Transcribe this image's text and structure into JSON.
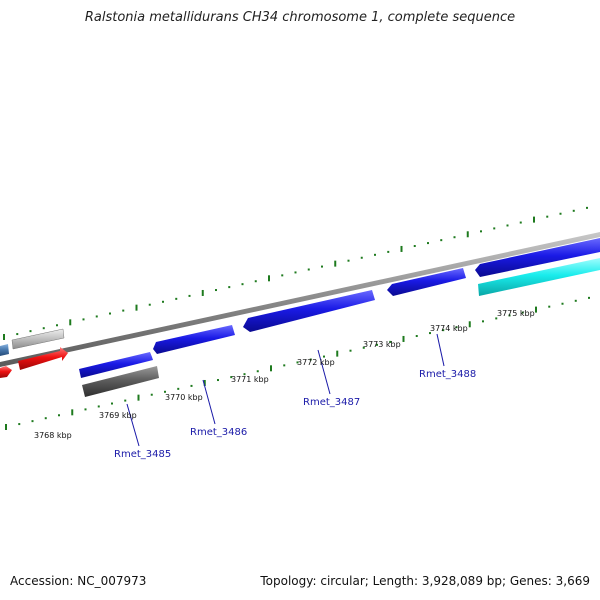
{
  "title": "Ralstonia metallidurans CH34 chromosome 1, complete sequence",
  "footer": {
    "accession": "Accession: NC_007973",
    "summary": "Topology: circular; Length: 3,928,089 bp; Genes: 3,669"
  },
  "colors": {
    "backbone": "#8a8a8a",
    "tick": "#1e7a1e",
    "gene_blue": "#1a1ae6",
    "gene_cyan": "#19ecec",
    "gene_red": "#ee1111",
    "gene_gray_light": "#c4c4c4",
    "gene_gray_dark": "#5e5e5e",
    "gene_steel": "#4a7ab0",
    "label_blue": "#1a1aa8"
  },
  "scale_labels": [
    "3768 kbp",
    "3769 kbp",
    "3770 kbp",
    "3771 kbp",
    "3772 kbp",
    "3773 kbp",
    "3774 kbp",
    "3775 kbp"
  ],
  "gene_labels": [
    "Rmet_3485",
    "Rmet_3486",
    "Rmet_3487",
    "Rmet_3488"
  ]
}
